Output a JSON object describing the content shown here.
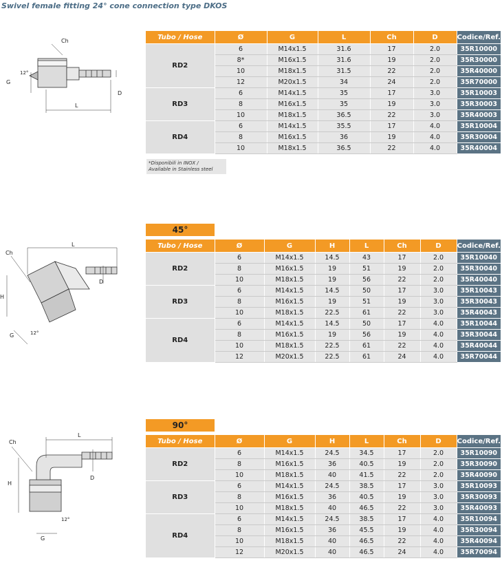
{
  "title": "Swivel female fitting 24° cone connection type DKOS",
  "note": {
    "line1": "*Disponibili in INOX /",
    "line2": "Available in Stainless steel"
  },
  "sections": [
    {
      "tab": "",
      "columns": [
        "Tubo / Hose",
        "Ø",
        "G",
        "L",
        "Ch",
        "D",
        "Codice/Ref."
      ],
      "groups": [
        {
          "name": "RD2",
          "rows": [
            [
              "6",
              "M14x1.5",
              "31.6",
              "17",
              "2.0",
              "35R10000"
            ],
            [
              "8*",
              "M16x1.5",
              "31.6",
              "19",
              "2.0",
              "35R30000"
            ],
            [
              "10",
              "M18x1.5",
              "31.5",
              "22",
              "2.0",
              "35R40000"
            ],
            [
              "12",
              "M20x1.5",
              "34",
              "24",
              "2.0",
              "35R70000"
            ]
          ]
        },
        {
          "name": "RD3",
          "rows": [
            [
              "6",
              "M14x1.5",
              "35",
              "17",
              "3.0",
              "35R10003"
            ],
            [
              "8",
              "M16x1.5",
              "35",
              "19",
              "3.0",
              "35R30003"
            ],
            [
              "10",
              "M18x1.5",
              "36.5",
              "22",
              "3.0",
              "35R40003"
            ]
          ]
        },
        {
          "name": "RD4",
          "rows": [
            [
              "6",
              "M14x1.5",
              "35.5",
              "17",
              "4.0",
              "35R10004"
            ],
            [
              "8",
              "M16x1.5",
              "36",
              "19",
              "4.0",
              "35R30004"
            ],
            [
              "10",
              "M18x1.5",
              "36.5",
              "22",
              "4.0",
              "35R40004"
            ]
          ]
        }
      ]
    },
    {
      "tab": "45°",
      "columns": [
        "Tubo / Hose",
        "Ø",
        "G",
        "H",
        "L",
        "Ch",
        "D",
        "Codice/Ref."
      ],
      "groups": [
        {
          "name": "RD2",
          "rows": [
            [
              "6",
              "M14x1.5",
              "14.5",
              "43",
              "17",
              "2.0",
              "35R10040"
            ],
            [
              "8",
              "M16x1.5",
              "19",
              "51",
              "19",
              "2.0",
              "35R30040"
            ],
            [
              "10",
              "M18x1.5",
              "19",
              "56",
              "22",
              "2.0",
              "35R40040"
            ]
          ]
        },
        {
          "name": "RD3",
          "rows": [
            [
              "6",
              "M14x1.5",
              "14.5",
              "50",
              "17",
              "3.0",
              "35R10043"
            ],
            [
              "8",
              "M16x1.5",
              "19",
              "51",
              "19",
              "3.0",
              "35R30043"
            ],
            [
              "10",
              "M18x1.5",
              "22.5",
              "61",
              "22",
              "3.0",
              "35R40043"
            ]
          ]
        },
        {
          "name": "RD4",
          "rows": [
            [
              "6",
              "M14x1.5",
              "14.5",
              "50",
              "17",
              "4.0",
              "35R10044"
            ],
            [
              "8",
              "M16x1.5",
              "19",
              "56",
              "19",
              "4.0",
              "35R30044"
            ],
            [
              "10",
              "M18x1.5",
              "22.5",
              "61",
              "22",
              "4.0",
              "35R40044"
            ],
            [
              "12",
              "M20x1.5",
              "22.5",
              "61",
              "24",
              "4.0",
              "35R70044"
            ]
          ]
        }
      ]
    },
    {
      "tab": "90°",
      "columns": [
        "Tubo / Hose",
        "Ø",
        "G",
        "H",
        "L",
        "Ch",
        "D",
        "Codice/Ref."
      ],
      "groups": [
        {
          "name": "RD2",
          "rows": [
            [
              "6",
              "M14x1.5",
              "24.5",
              "34.5",
              "17",
              "2.0",
              "35R10090"
            ],
            [
              "8",
              "M16x1.5",
              "36",
              "40.5",
              "19",
              "2.0",
              "35R30090"
            ],
            [
              "10",
              "M18x1.5",
              "40",
              "41.5",
              "22",
              "2.0",
              "35R40090"
            ]
          ]
        },
        {
          "name": "RD3",
          "rows": [
            [
              "6",
              "M14x1.5",
              "24.5",
              "38.5",
              "17",
              "3.0",
              "35R10093"
            ],
            [
              "8",
              "M16x1.5",
              "36",
              "40.5",
              "19",
              "3.0",
              "35R30093"
            ],
            [
              "10",
              "M18x1.5",
              "40",
              "46.5",
              "22",
              "3.0",
              "35R40093"
            ]
          ]
        },
        {
          "name": "RD4",
          "rows": [
            [
              "6",
              "M14x1.5",
              "24.5",
              "38.5",
              "17",
              "4.0",
              "35R10094"
            ],
            [
              "8",
              "M16x1.5",
              "36",
              "45.5",
              "19",
              "4.0",
              "35R30094"
            ],
            [
              "10",
              "M18x1.5",
              "40",
              "46.5",
              "22",
              "4.0",
              "35R40094"
            ],
            [
              "12",
              "M20x1.5",
              "40",
              "46.5",
              "24",
              "4.0",
              "35R70094"
            ]
          ]
        }
      ]
    }
  ],
  "drawing_labels": {
    "straight": {
      "ch": "Ch",
      "angle": "12°",
      "g": "G",
      "d": "D",
      "l": "L"
    },
    "elbow45": {
      "ch": "Ch",
      "l": "L",
      "h": "H",
      "d": "D",
      "g": "G",
      "angle": "12°"
    },
    "elbow90": {
      "ch": "Ch",
      "l": "L",
      "h": "H",
      "d": "D",
      "g": "G",
      "angle": "12°"
    }
  }
}
